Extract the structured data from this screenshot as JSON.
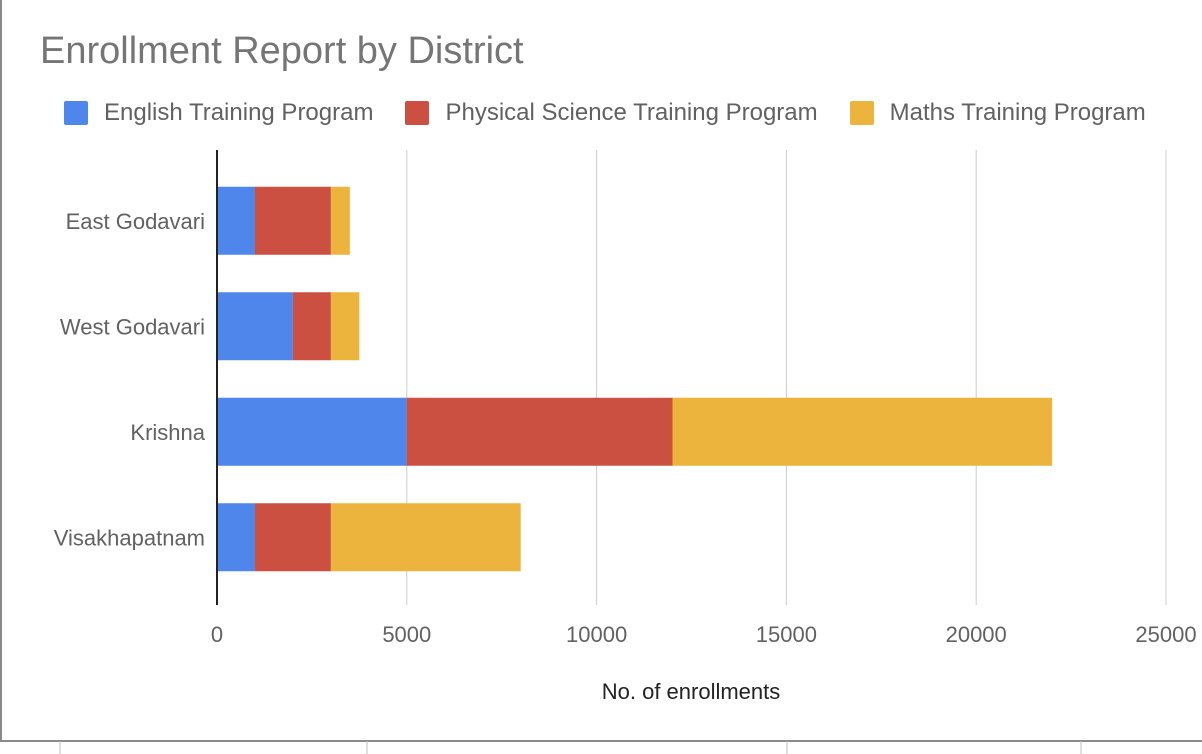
{
  "chart_data": {
    "type": "bar",
    "orientation": "horizontal",
    "stacked": true,
    "title": "Enrollment Report by District",
    "xlabel": "No. of enrollments",
    "ylabel": "",
    "xlim": [
      0,
      25000
    ],
    "x_ticks": [
      0,
      5000,
      10000,
      15000,
      20000,
      25000
    ],
    "categories": [
      "East Godavari",
      "West Godavari",
      "Krishna",
      "Visakhapatnam"
    ],
    "series": [
      {
        "name": "English Training Program",
        "color": "#4e86ec",
        "values": [
          1000,
          2000,
          5000,
          1000
        ]
      },
      {
        "name": "Physical Science Training Program",
        "color": "#cc5041",
        "values": [
          2000,
          1000,
          7000,
          2000
        ]
      },
      {
        "name": "Maths Training Program",
        "color": "#ecb43d",
        "values": [
          500,
          750,
          10000,
          5000
        ]
      }
    ],
    "grid": true,
    "legend_position": "top"
  }
}
